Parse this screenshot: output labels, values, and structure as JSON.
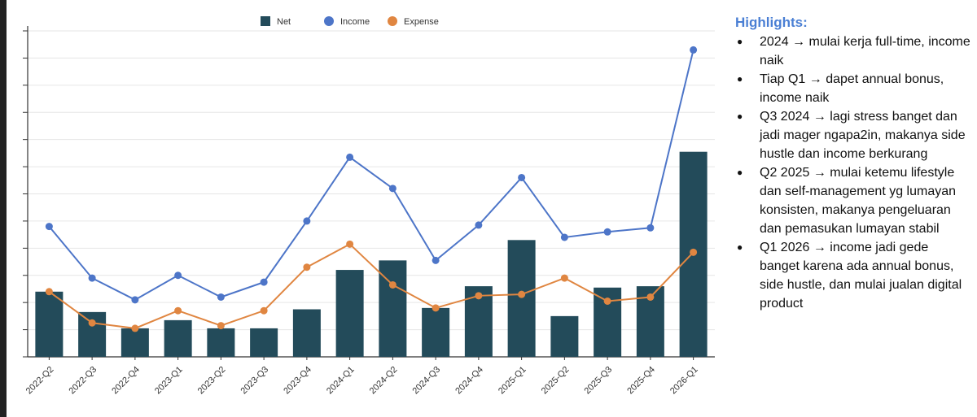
{
  "chart_data": {
    "type": "bar+line",
    "categories": [
      "2022-Q2",
      "2022-Q3",
      "2022-Q4",
      "2023-Q1",
      "2023-Q2",
      "2023-Q3",
      "2023-Q4",
      "2024-Q1",
      "2024-Q2",
      "2024-Q3",
      "2024-Q4",
      "2025-Q1",
      "2025-Q2",
      "2025-Q3",
      "2025-Q4",
      "2026-Q1"
    ],
    "series": [
      {
        "name": "Net",
        "type": "bar",
        "color": "#234b5a",
        "values": [
          2.4,
          1.65,
          1.05,
          1.35,
          1.05,
          1.05,
          1.75,
          3.2,
          3.55,
          1.8,
          2.6,
          4.3,
          1.5,
          2.55,
          2.6,
          7.55
        ]
      },
      {
        "name": "Income",
        "type": "line",
        "color": "#4d75c8",
        "values": [
          4.8,
          2.9,
          2.1,
          3.0,
          2.2,
          2.75,
          5.0,
          7.35,
          6.2,
          3.55,
          4.85,
          6.6,
          4.4,
          4.6,
          4.75,
          11.3
        ]
      },
      {
        "name": "Expense",
        "type": "line",
        "color": "#e08641",
        "values": [
          2.4,
          1.25,
          1.05,
          1.7,
          1.15,
          1.7,
          3.3,
          4.15,
          2.65,
          1.8,
          2.25,
          2.3,
          2.9,
          2.05,
          2.2,
          3.85
        ]
      }
    ],
    "ylim": [
      0,
      12
    ],
    "title": "",
    "xlabel": "",
    "ylabel": "",
    "legend": "top"
  },
  "highlights": {
    "title": "Highlights:",
    "items": [
      "2024 → mulai kerja full-time, income naik",
      "Tiap Q1 → dapet annual bonus, income naik",
      "Q3 2024 → lagi stress banget dan jadi mager ngapa2in, makanya side hustle dan income berkurang",
      "Q2 2025 → mulai ketemu lifestyle dan self-management yg lumayan konsisten, makanya pengeluaran dan pemasukan lumayan stabil",
      "Q1 2026 → income jadi gede banget karena ada annual bonus, side hustle, dan mulai jualan digital product"
    ]
  }
}
